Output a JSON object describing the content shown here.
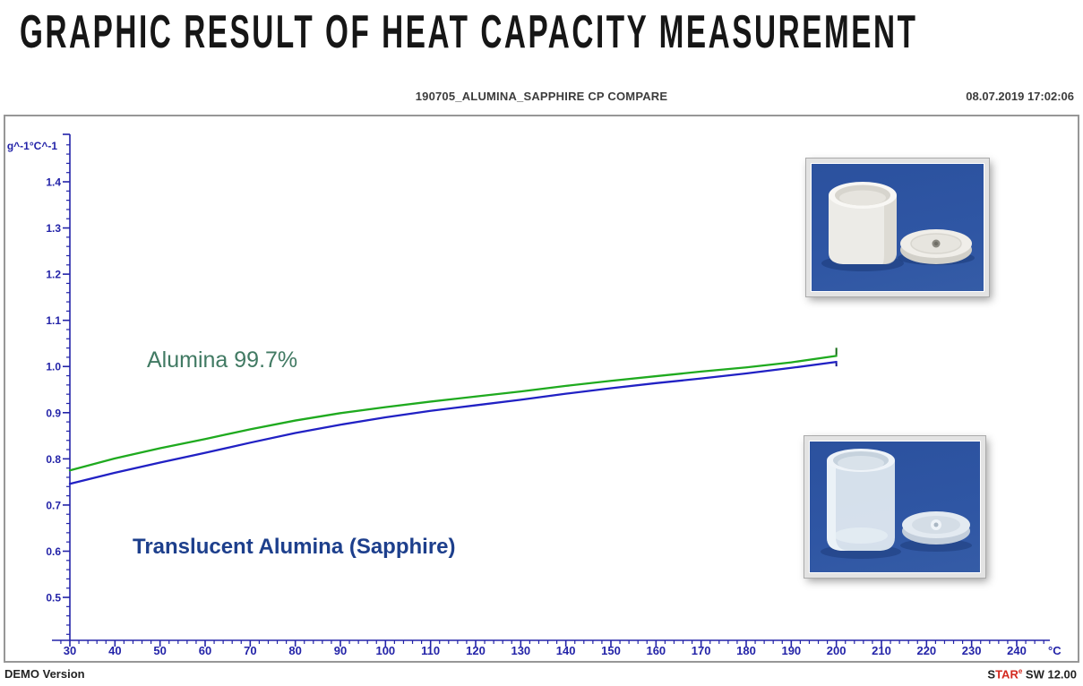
{
  "page_title": "GRAPHIC RESULT OF HEAT CAPACITY MEASUREMENT",
  "header": {
    "filename": "190705_ALUMINA_SAPPHIRE CP COMPARE",
    "datetime": "08.07.2019 17:02:06"
  },
  "footer": {
    "demo_version": "DEMO Version",
    "software": {
      "prefix": "S",
      "red": "TAR",
      "sup": "e",
      "suffix": " SW 12.00"
    }
  },
  "chart_data": {
    "type": "line",
    "title": "190705_ALUMINA_SAPPHIRE CP COMPARE",
    "xlabel": "°C",
    "ylabel": "g^-1°C^-1",
    "x": [
      30,
      40,
      50,
      60,
      70,
      80,
      90,
      100,
      110,
      120,
      130,
      140,
      150,
      160,
      170,
      180,
      190,
      200
    ],
    "series": [
      {
        "name": "Alumina 99.7%",
        "color": "#1faa1f",
        "label_color": "#417a63",
        "values": [
          0.775,
          0.801,
          0.823,
          0.843,
          0.864,
          0.883,
          0.899,
          0.912,
          0.924,
          0.935,
          0.946,
          0.958,
          0.969,
          0.979,
          0.989,
          0.998,
          1.009,
          1.023
        ]
      },
      {
        "name": "Translucent Alumina (Sapphire)",
        "color": "#2121c4",
        "label_color": "#1d3f8c",
        "values": [
          0.746,
          0.77,
          0.792,
          0.813,
          0.835,
          0.856,
          0.874,
          0.89,
          0.904,
          0.916,
          0.928,
          0.941,
          0.953,
          0.964,
          0.974,
          0.985,
          0.997,
          1.01
        ]
      }
    ],
    "xlim": [
      26,
      247
    ],
    "ylim": [
      0.41,
      1.5
    ],
    "x_ticks": [
      30,
      40,
      50,
      60,
      70,
      80,
      90,
      100,
      110,
      120,
      130,
      140,
      150,
      160,
      170,
      180,
      190,
      200,
      210,
      220,
      230,
      240
    ],
    "y_ticks": [
      0.5,
      0.6,
      0.7,
      0.8,
      0.9,
      1.0,
      1.1,
      1.2,
      1.3,
      1.4
    ],
    "x_minor_step": 2,
    "y_minor_step": 0.02,
    "grid": false,
    "legend_position": "inline-curve-labels",
    "axis_color": "#2323a8"
  },
  "insets": {
    "top_photo": "alumina-crucible-photo",
    "bottom_photo": "sapphire-crucible-photo"
  }
}
